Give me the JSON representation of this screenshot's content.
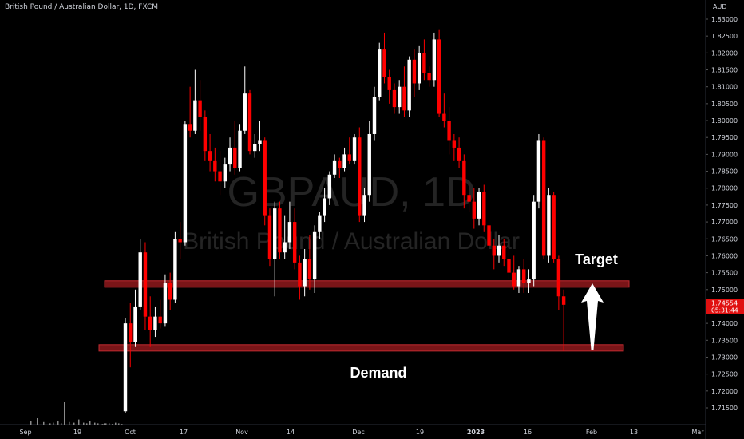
{
  "header": {
    "title": "British Pound / Australian Dollar, 1D, FXCM"
  },
  "currency_label": "AUD",
  "watermark": {
    "symbol": "GBPAUD, 1D",
    "name": "British Pound / Australian Dollar"
  },
  "price_tag": {
    "price": "1.74554",
    "countdown": "05:31:44"
  },
  "annotations": {
    "target": "Target",
    "demand": "Demand"
  },
  "colors": {
    "background": "#000000",
    "up": "#ffffff",
    "down": "#ff0000",
    "zone": "#7a1518",
    "zone_border": "#c02a30",
    "text": "#d1d4dc",
    "volume": "#8a8a8a"
  },
  "chart_data": {
    "type": "candlestick",
    "y_ticks": [
      "1.83000",
      "1.82500",
      "1.82000",
      "1.81500",
      "1.81000",
      "1.80500",
      "1.80000",
      "1.79500",
      "1.79000",
      "1.78500",
      "1.78000",
      "1.77500",
      "1.77000",
      "1.76500",
      "1.76000",
      "1.75500",
      "1.75000",
      "1.74500",
      "1.74000",
      "1.73500",
      "1.73000",
      "1.72500",
      "1.72000",
      "1.71500"
    ],
    "ylim": [
      1.711,
      1.832
    ],
    "x_ticks": [
      "Sep",
      "19",
      "Oct",
      "17",
      "Nov",
      "14",
      "Dec",
      "19",
      "2023",
      "16",
      "Feb",
      "13",
      "Mar"
    ],
    "zones": [
      {
        "name": "supply",
        "low": 1.7507,
        "high": 1.7526
      },
      {
        "name": "demand",
        "low": 1.7318,
        "high": 1.7337
      }
    ],
    "candles": [
      [
        1.714,
        1.7415,
        1.7135,
        1.74
      ],
      [
        1.74,
        1.746,
        1.727,
        1.7345
      ],
      [
        1.7345,
        1.75,
        1.733,
        1.745
      ],
      [
        1.745,
        1.765,
        1.744,
        1.761
      ],
      [
        1.761,
        1.764,
        1.738,
        1.742
      ],
      [
        1.742,
        1.748,
        1.733,
        1.738
      ],
      [
        1.738,
        1.745,
        1.736,
        1.742
      ],
      [
        1.742,
        1.747,
        1.7385,
        1.74
      ],
      [
        1.74,
        1.7545,
        1.739,
        1.752
      ],
      [
        1.752,
        1.755,
        1.744,
        1.747
      ],
      [
        1.747,
        1.767,
        1.746,
        1.765
      ],
      [
        1.765,
        1.77,
        1.759,
        1.764
      ],
      [
        1.764,
        1.8,
        1.763,
        1.799
      ],
      [
        1.799,
        1.81,
        1.795,
        1.797
      ],
      [
        1.797,
        1.815,
        1.796,
        1.806
      ],
      [
        1.806,
        1.812,
        1.797,
        1.801
      ],
      [
        1.801,
        1.803,
        1.788,
        1.791
      ],
      [
        1.791,
        1.796,
        1.785,
        1.788
      ],
      [
        1.788,
        1.792,
        1.782,
        1.785
      ],
      [
        1.785,
        1.791,
        1.778,
        1.782
      ],
      [
        1.782,
        1.789,
        1.78,
        1.787
      ],
      [
        1.787,
        1.795,
        1.785,
        1.792
      ],
      [
        1.792,
        1.8,
        1.784,
        1.786
      ],
      [
        1.786,
        1.799,
        1.785,
        1.797
      ],
      [
        1.797,
        1.816,
        1.796,
        1.808
      ],
      [
        1.808,
        1.809,
        1.79,
        1.791
      ],
      [
        1.791,
        1.796,
        1.789,
        1.793
      ],
      [
        1.793,
        1.8,
        1.791,
        1.794
      ],
      [
        1.794,
        1.795,
        1.769,
        1.772
      ],
      [
        1.772,
        1.774,
        1.757,
        1.759
      ],
      [
        1.759,
        1.776,
        1.748,
        1.774
      ],
      [
        1.774,
        1.776,
        1.759,
        1.761
      ],
      [
        1.761,
        1.772,
        1.759,
        1.764
      ],
      [
        1.764,
        1.776,
        1.762,
        1.77
      ],
      [
        1.77,
        1.774,
        1.756,
        1.758
      ],
      [
        1.758,
        1.76,
        1.747,
        1.751
      ],
      [
        1.751,
        1.762,
        1.748,
        1.759
      ],
      [
        1.759,
        1.766,
        1.75,
        1.753
      ],
      [
        1.753,
        1.769,
        1.749,
        1.767
      ],
      [
        1.767,
        1.773,
        1.765,
        1.772
      ],
      [
        1.772,
        1.78,
        1.77,
        1.777
      ],
      [
        1.777,
        1.785,
        1.775,
        1.784
      ],
      [
        1.784,
        1.79,
        1.783,
        1.788
      ],
      [
        1.788,
        1.789,
        1.783,
        1.786
      ],
      [
        1.786,
        1.792,
        1.785,
        1.79
      ],
      [
        1.79,
        1.795,
        1.787,
        1.788
      ],
      [
        1.788,
        1.796,
        1.787,
        1.795
      ],
      [
        1.795,
        1.798,
        1.77,
        1.772
      ],
      [
        1.772,
        1.78,
        1.77,
        1.778
      ],
      [
        1.778,
        1.8,
        1.776,
        1.796
      ],
      [
        1.796,
        1.81,
        1.794,
        1.807
      ],
      [
        1.807,
        1.823,
        1.806,
        1.821
      ],
      [
        1.821,
        1.826,
        1.811,
        1.813
      ],
      [
        1.813,
        1.815,
        1.805,
        1.809
      ],
      [
        1.809,
        1.811,
        1.802,
        1.804
      ],
      [
        1.804,
        1.812,
        1.802,
        1.81
      ],
      [
        1.81,
        1.816,
        1.801,
        1.803
      ],
      [
        1.803,
        1.819,
        1.801,
        1.818
      ],
      [
        1.818,
        1.821,
        1.807,
        1.811
      ],
      [
        1.811,
        1.822,
        1.809,
        1.82
      ],
      [
        1.82,
        1.824,
        1.812,
        1.814
      ],
      [
        1.814,
        1.816,
        1.81,
        1.812
      ],
      [
        1.812,
        1.826,
        1.81,
        1.824
      ],
      [
        1.824,
        1.827,
        1.801,
        1.802
      ],
      [
        1.802,
        1.808,
        1.798,
        1.8
      ],
      [
        1.8,
        1.804,
        1.79,
        1.794
      ],
      [
        1.794,
        1.796,
        1.788,
        1.792
      ],
      [
        1.792,
        1.795,
        1.786,
        1.788
      ],
      [
        1.788,
        1.79,
        1.774,
        1.778
      ],
      [
        1.778,
        1.782,
        1.773,
        1.776
      ],
      [
        1.776,
        1.78,
        1.768,
        1.771
      ],
      [
        1.771,
        1.78,
        1.769,
        1.779
      ],
      [
        1.779,
        1.781,
        1.767,
        1.769
      ],
      [
        1.769,
        1.771,
        1.761,
        1.763
      ],
      [
        1.763,
        1.765,
        1.756,
        1.76
      ],
      [
        1.76,
        1.766,
        1.758,
        1.763
      ],
      [
        1.763,
        1.765,
        1.757,
        1.759
      ],
      [
        1.759,
        1.764,
        1.753,
        1.755
      ],
      [
        1.755,
        1.76,
        1.75,
        1.751
      ],
      [
        1.751,
        1.757,
        1.749,
        1.756
      ],
      [
        1.756,
        1.759,
        1.749,
        1.752
      ],
      [
        1.752,
        1.756,
        1.749,
        1.753
      ],
      [
        1.753,
        1.778,
        1.751,
        1.776
      ],
      [
        1.776,
        1.796,
        1.774,
        1.794
      ],
      [
        1.794,
        1.795,
        1.759,
        1.76
      ],
      [
        1.76,
        1.78,
        1.758,
        1.778
      ],
      [
        1.778,
        1.779,
        1.758,
        1.759
      ],
      [
        1.759,
        1.76,
        1.744,
        1.748
      ],
      [
        1.748,
        1.75,
        1.7318,
        1.7455
      ]
    ],
    "volume": [
      0.6,
      1.0,
      0.4,
      0.2,
      0.3,
      0.5,
      0.2,
      3.5,
      0.4,
      0.3,
      0.8,
      0.3,
      0.2,
      0.6,
      0.3,
      0.2,
      0.1,
      0.2,
      0.2,
      0.1,
      0.3,
      0.2,
      0.1,
      0.1,
      0.2
    ]
  }
}
